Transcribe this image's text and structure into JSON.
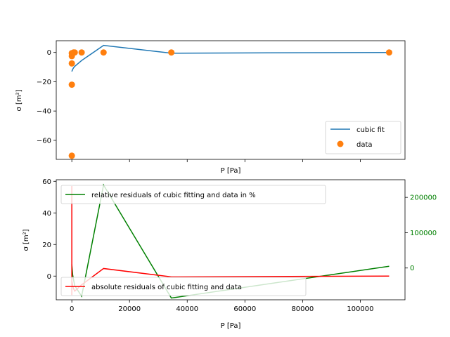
{
  "chart_data": [
    {
      "type": "line",
      "xlabel": "P [Pa]",
      "ylabel": "σ [m²]",
      "xlim": [
        -5400,
        115500
      ],
      "ylim": [
        -73,
        8
      ],
      "yticks": [
        0,
        -20,
        -40,
        -60
      ],
      "xticks": [
        0,
        20000,
        40000,
        60000,
        80000,
        100000
      ],
      "show_xtick_labels": false,
      "legend_position": "lower-right",
      "series": [
        {
          "name": "cubic fit",
          "kind": "line",
          "color": "#1f77b4",
          "x": [
            0,
            100,
            300,
            600,
            1000,
            3400,
            11000,
            34500,
            110000
          ],
          "y": [
            -13,
            -12.5,
            -11.5,
            -10.5,
            -9.5,
            -5.5,
            4.8,
            -0.5,
            0
          ]
        },
        {
          "name": "data",
          "kind": "scatter",
          "color": "#ff7f0e",
          "x": [
            0,
            0,
            0,
            0,
            0,
            100,
            300,
            600,
            1000,
            3400,
            11000,
            34500,
            110000
          ],
          "y": [
            -70.5,
            -22,
            -7.5,
            -2.5,
            -0.5,
            -1,
            -0.5,
            0,
            0,
            0,
            0,
            0,
            0
          ]
        }
      ]
    },
    {
      "type": "line",
      "xlabel": "P [Pa]",
      "ylabel": "σ [m²]",
      "xlim": [
        -5400,
        115500
      ],
      "ylim": [
        -15,
        61
      ],
      "yticks": [
        0,
        20,
        40,
        60
      ],
      "xticks": [
        0,
        20000,
        40000,
        60000,
        80000,
        100000
      ],
      "xtick_labels": [
        "0",
        "20000",
        "40000",
        "60000",
        "80000",
        "100000"
      ],
      "y2lim": [
        -90000,
        250000
      ],
      "y2ticks": [
        0,
        100000,
        200000
      ],
      "y2tick_labels": [
        "0",
        "100000",
        "200000"
      ],
      "y2_color": "#008000",
      "series": [
        {
          "name": "absolute residuals of cubic fitting and data",
          "kind": "line",
          "axis": "left",
          "color": "#ff0000",
          "legend_position": "lower-left",
          "x": [
            0,
            0,
            0,
            100,
            300,
            600,
            1000,
            3400,
            11000,
            34500,
            110000
          ],
          "y": [
            57,
            -12,
            -3,
            -4,
            -6,
            -8,
            -9.5,
            -5.5,
            4.8,
            -0.5,
            0
          ]
        },
        {
          "name": "relative residuals of cubic fitting and data in %",
          "kind": "line",
          "axis": "right",
          "color": "#008000",
          "legend_position": "upper-left",
          "x": [
            0,
            300,
            1000,
            3400,
            11000,
            34500,
            110000
          ],
          "y": [
            10000,
            -20000,
            -50000,
            -80000,
            235000,
            -85000,
            5000
          ]
        }
      ]
    }
  ]
}
